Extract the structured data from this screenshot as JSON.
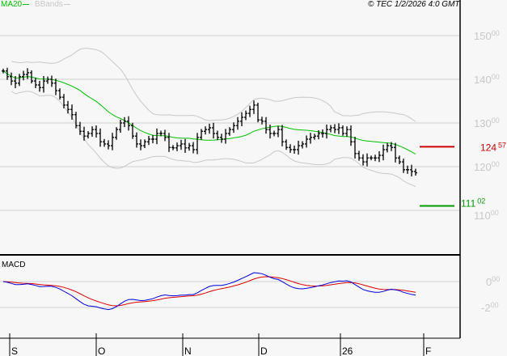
{
  "legend": {
    "ma_label": "MA20",
    "bb_label": "BBands",
    "ma_color": "#00c000",
    "bb_color": "#c8c8c8"
  },
  "copyright": "© TEC 1/2/2026 4:0 GMT",
  "macd_label": "MACD",
  "chart_data": [
    {
      "type": "line",
      "title": "",
      "ylim": [
        105,
        155
      ],
      "y_ticks": [
        {
          "int": "150",
          "dec": "00",
          "v": 150
        },
        {
          "int": "140",
          "dec": "00",
          "v": 140
        },
        {
          "int": "130",
          "dec": "00",
          "v": 130
        },
        {
          "int": "120",
          "dec": "00",
          "v": 120
        },
        {
          "int": "110",
          "dec": "00",
          "v": 110
        }
      ],
      "x_ticks": [
        "S",
        "O",
        "N",
        "D",
        "26",
        "F"
      ],
      "grid": true,
      "closes": [
        141.9,
        140.6,
        139.6,
        139.1,
        140.6,
        141.1,
        141.5,
        139.6,
        138.7,
        138.1,
        139.6,
        140.0,
        139.1,
        137.4,
        135.9,
        134.1,
        133.1,
        131.9,
        129.4,
        128.1,
        127.0,
        127.6,
        128.5,
        127.6,
        125.7,
        125.2,
        124.8,
        126.7,
        128.5,
        130.0,
        130.4,
        129.4,
        127.0,
        125.2,
        124.8,
        125.7,
        126.3,
        126.3,
        127.6,
        127.6,
        126.7,
        124.4,
        124.3,
        124.8,
        125.2,
        124.3,
        124.8,
        123.9,
        126.7,
        128.1,
        128.5,
        128.9,
        127.6,
        126.7,
        126.3,
        127.6,
        128.5,
        129.4,
        130.4,
        131.3,
        132.2,
        133.1,
        134.1,
        130.7,
        130.4,
        128.5,
        127.6,
        127.6,
        128.5,
        125.7,
        124.4,
        123.9,
        123.9,
        124.8,
        125.2,
        126.3,
        126.7,
        127.0,
        127.6,
        127.6,
        128.5,
        128.9,
        128.5,
        128.9,
        127.6,
        128.5,
        125.7,
        123.0,
        122.0,
        121.1,
        122.0,
        122.0,
        122.0,
        122.6,
        123.9,
        124.8,
        124.4,
        122.0,
        121.1,
        119.3,
        119.3,
        118.9,
        118.6
      ],
      "series": [
        {
          "name": "MA20",
          "period": 20
        },
        {
          "name": "BBands",
          "period": 20,
          "stddev": 2
        }
      ],
      "levels": [
        {
          "int": "124",
          "dec": "57",
          "value": 124.57,
          "color": "#cc0000"
        },
        {
          "int": "111",
          "dec": "02",
          "value": 111.02,
          "color": "#009900"
        }
      ]
    },
    {
      "type": "line",
      "title": "MACD",
      "ylim": [
        -4.2,
        2.1
      ],
      "y_ticks": [
        {
          "int": "0",
          "dec": "00",
          "v": 0
        },
        {
          "int": "-2",
          "dec": "00",
          "v": -2
        }
      ],
      "series": [
        {
          "name": "MACD",
          "color": "#0000dd"
        },
        {
          "name": "Signal",
          "color": "#dd0000"
        }
      ]
    }
  ]
}
